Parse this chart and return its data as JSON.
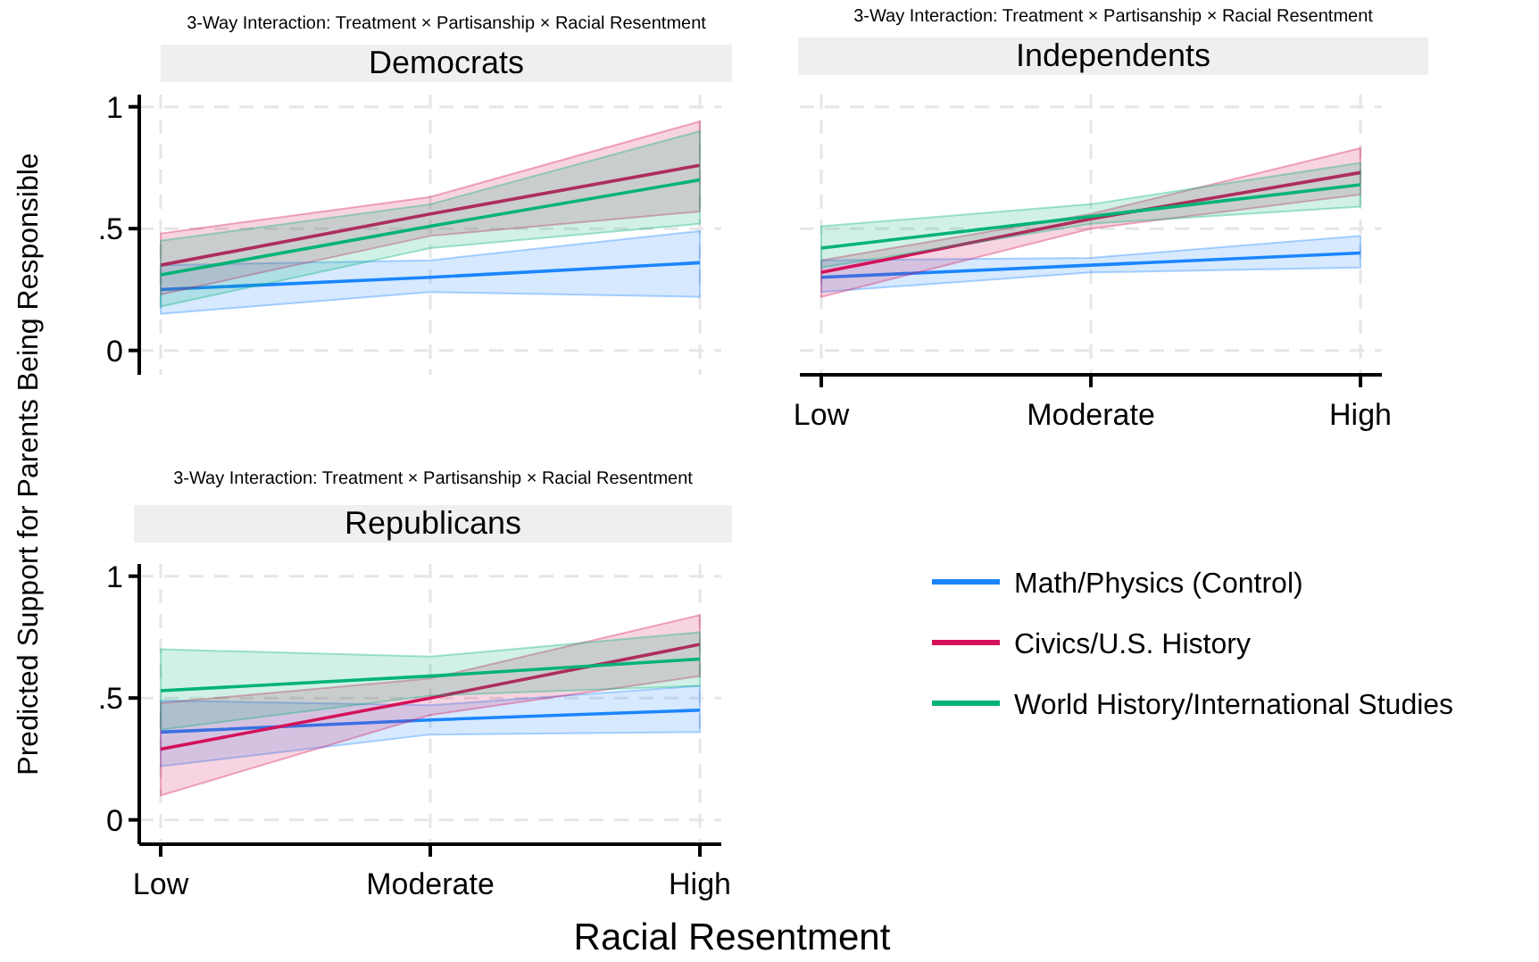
{
  "chart_data": [
    {
      "type": "line",
      "title": "3-Way Interaction: Treatment × Partisanship × Racial Resentment",
      "subtitle": "Democrats",
      "ylabel": "Predicted Support for Parents Being Responsible",
      "categories": [
        null,
        null,
        null
      ],
      "ylim": [
        -0.1,
        1.05
      ],
      "yticks": [
        {
          "value": 0,
          "label": "0"
        },
        {
          "value": 0.5,
          "label": ".5"
        },
        {
          "value": 1,
          "label": "1"
        }
      ],
      "grid": true,
      "tick_labels": "y",
      "line_style": "solid",
      "marker": "none",
      "series": [
        {
          "color": "#1a85ff",
          "values": [
            0.25,
            0.3,
            0.36
          ],
          "lower": [
            0.15,
            0.24,
            0.22
          ],
          "upper": [
            0.35,
            0.37,
            0.49
          ]
        },
        {
          "color": "#d41159",
          "values": [
            0.35,
            0.56,
            0.76
          ],
          "lower": [
            0.23,
            0.47,
            0.57
          ],
          "upper": [
            0.48,
            0.63,
            0.94
          ]
        },
        {
          "color": "#00b377",
          "values": [
            0.31,
            0.51,
            0.7
          ],
          "lower": [
            0.18,
            0.42,
            0.52
          ],
          "upper": [
            0.45,
            0.6,
            0.9
          ]
        }
      ]
    },
    {
      "type": "line",
      "title": "3-Way Interaction: Treatment × Partisanship × Racial Resentment",
      "subtitle": "Independents",
      "categories": [
        "Low",
        "Moderate",
        "High"
      ],
      "ylim": [
        -0.1,
        1.05
      ],
      "yticks": [
        {
          "value": 0,
          "label": null
        },
        {
          "value": 0.5,
          "label": null
        },
        {
          "value": 1,
          "label": null
        }
      ],
      "grid": true,
      "tick_labels": "x",
      "line_style": "solid",
      "marker": "none",
      "series": [
        {
          "color": "#1a85ff",
          "values": [
            0.3,
            0.35,
            0.4
          ],
          "lower": [
            0.24,
            0.32,
            0.34
          ],
          "upper": [
            0.37,
            0.38,
            0.47
          ]
        },
        {
          "color": "#d41159",
          "values": [
            0.32,
            0.54,
            0.73
          ],
          "lower": [
            0.22,
            0.5,
            0.64
          ],
          "upper": [
            0.37,
            0.56,
            0.83
          ]
        },
        {
          "color": "#00b377",
          "values": [
            0.42,
            0.55,
            0.68
          ],
          "lower": [
            0.34,
            0.52,
            0.59
          ],
          "upper": [
            0.51,
            0.6,
            0.77
          ]
        }
      ]
    },
    {
      "type": "line",
      "title": "3-Way Interaction: Treatment × Partisanship × Racial Resentment",
      "subtitle": "Republicans",
      "xlabel": "Racial Resentment",
      "categories": [
        "Low",
        "Moderate",
        "High"
      ],
      "ylim": [
        -0.1,
        1.05
      ],
      "yticks": [
        {
          "value": 0,
          "label": "0"
        },
        {
          "value": 0.5,
          "label": ".5"
        },
        {
          "value": 1,
          "label": "1"
        }
      ],
      "grid": true,
      "legend": "right",
      "line_style": "solid",
      "marker": "none",
      "series": [
        {
          "name": "Math/Physics (Control)",
          "color": "#1a85ff",
          "values": [
            0.36,
            0.41,
            0.45
          ],
          "lower": [
            0.22,
            0.35,
            0.36
          ],
          "upper": [
            0.49,
            0.47,
            0.55
          ]
        },
        {
          "name": "Civics/U.S. History",
          "color": "#d41159",
          "values": [
            0.29,
            0.5,
            0.72
          ],
          "lower": [
            0.1,
            0.43,
            0.59
          ],
          "upper": [
            0.48,
            0.58,
            0.84
          ]
        },
        {
          "name": "World History/International Studies",
          "color": "#00b377",
          "values": [
            0.53,
            0.59,
            0.66
          ],
          "lower": [
            0.37,
            0.51,
            0.55
          ],
          "upper": [
            0.7,
            0.67,
            0.77
          ]
        }
      ]
    }
  ]
}
